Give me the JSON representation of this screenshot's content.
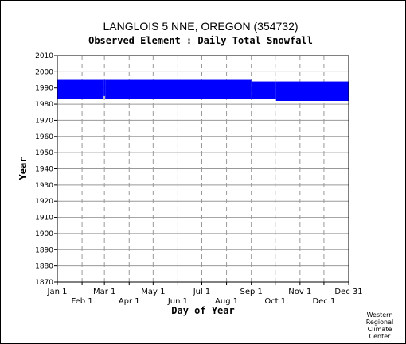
{
  "chart_data": {
    "type": "bar",
    "title": "LANGLOIS 5 NNE, OREGON   (354732)",
    "subtitle": "Observed Element : Daily Total Snowfall",
    "xlabel": "Day of Year",
    "ylabel": "Year",
    "xlim": [
      1,
      366
    ],
    "ylim": [
      1870,
      2010
    ],
    "y_ticks": [
      1870,
      1880,
      1890,
      1900,
      1910,
      1920,
      1930,
      1940,
      1950,
      1960,
      1970,
      1980,
      1990,
      2000,
      2010
    ],
    "x_ticks_upper": [
      {
        "label": "Jan 1",
        "day": 1
      },
      {
        "label": "Mar 1",
        "day": 60
      },
      {
        "label": "May 1",
        "day": 121
      },
      {
        "label": "Jul 1",
        "day": 182
      },
      {
        "label": "Sep 1",
        "day": 244
      },
      {
        "label": "Nov 1",
        "day": 305
      },
      {
        "label": "Dec 31",
        "day": 366
      }
    ],
    "x_ticks_lower": [
      {
        "label": "Feb 1",
        "day": 32
      },
      {
        "label": "Apr 1",
        "day": 91
      },
      {
        "label": "Jun 1",
        "day": 152
      },
      {
        "label": "Aug 1",
        "day": 213
      },
      {
        "label": "Oct 1",
        "day": 274
      },
      {
        "label": "Dec 1",
        "day": 335
      }
    ],
    "grid": true,
    "bar_color": "#0000ff",
    "coverage": [
      {
        "start_day": 1,
        "end_day": 59,
        "start_year": 1983,
        "end_year": 1995
      },
      {
        "start_day": 59,
        "end_day": 61,
        "start_year": 1985,
        "end_year": 1995
      },
      {
        "start_day": 61,
        "end_day": 244,
        "start_year": 1983,
        "end_year": 1995
      },
      {
        "start_day": 244,
        "end_day": 275,
        "start_year": 1983,
        "end_year": 1994
      },
      {
        "start_day": 275,
        "end_day": 366,
        "start_year": 1982,
        "end_year": 1994
      }
    ]
  },
  "credit_lines": [
    "Western",
    "Regional",
    "Climate",
    "Center"
  ]
}
